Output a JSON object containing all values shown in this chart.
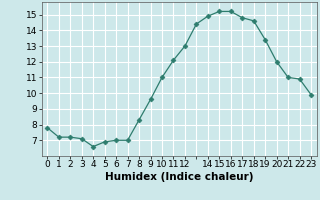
{
  "x": [
    0,
    1,
    2,
    3,
    4,
    5,
    6,
    7,
    8,
    9,
    10,
    11,
    12,
    13,
    14,
    15,
    16,
    17,
    18,
    19,
    20,
    21,
    22,
    23
  ],
  "y": [
    7.8,
    7.2,
    7.2,
    7.1,
    6.6,
    6.9,
    7.0,
    7.0,
    8.3,
    9.6,
    11.0,
    12.1,
    13.0,
    14.4,
    14.9,
    15.2,
    15.2,
    14.8,
    14.6,
    13.4,
    12.0,
    11.0,
    10.9,
    9.9
  ],
  "line_color": "#2e7d6e",
  "marker": "D",
  "marker_size": 2.5,
  "bg_color": "#cde8ea",
  "grid_color": "#ffffff",
  "xlabel": "Humidex (Indice chaleur)",
  "xlim": [
    -0.5,
    23.5
  ],
  "ylim": [
    6.0,
    15.8
  ],
  "yticks": [
    7,
    8,
    9,
    10,
    11,
    12,
    13,
    14,
    15
  ],
  "xtick_labels": [
    "0",
    "1",
    "2",
    "3",
    "4",
    "5",
    "6",
    "7",
    "8",
    "9",
    "10",
    "11",
    "12",
    "",
    "14",
    "15",
    "16",
    "17",
    "18",
    "19",
    "20",
    "21",
    "22",
    "23"
  ],
  "tick_fontsize": 6.5,
  "xlabel_fontsize": 7.5
}
